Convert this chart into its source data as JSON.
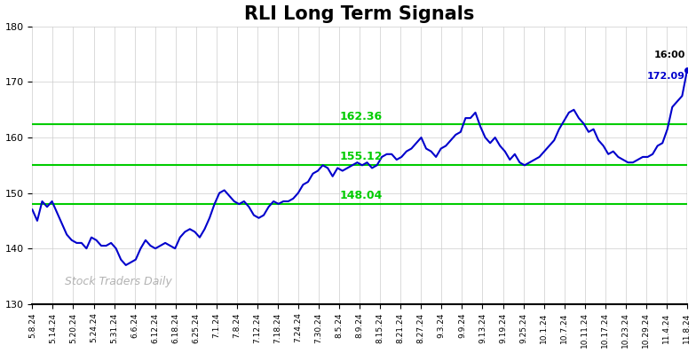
{
  "title": "RLI Long Term Signals",
  "title_fontsize": 15,
  "background_color": "#ffffff",
  "line_color": "#0000cc",
  "line_width": 1.5,
  "grid_color": "#cccccc",
  "watermark_text": "Stock Traders Daily",
  "watermark_color": "#aaaaaa",
  "hlines": [
    {
      "y": 148.04,
      "color": "#00cc00",
      "linewidth": 1.5,
      "label": "148.04"
    },
    {
      "y": 155.12,
      "color": "#00cc00",
      "linewidth": 1.5,
      "label": "155.12"
    },
    {
      "y": 162.36,
      "color": "#00cc00",
      "linewidth": 1.5,
      "label": "162.36"
    }
  ],
  "ylim": [
    130,
    180
  ],
  "yticks": [
    130,
    140,
    150,
    160,
    170,
    180
  ],
  "x_labels": [
    "5.8.24",
    "5.14.24",
    "5.20.24",
    "5.24.24",
    "5.31.24",
    "6.6.24",
    "6.12.24",
    "6.18.24",
    "6.25.24",
    "7.1.24",
    "7.8.24",
    "7.12.24",
    "7.18.24",
    "7.24.24",
    "7.30.24",
    "8.5.24",
    "8.9.24",
    "8.15.24",
    "8.21.24",
    "8.27.24",
    "9.3.24",
    "9.9.24",
    "9.13.24",
    "9.19.24",
    "9.25.24",
    "10.1.24",
    "10.7.24",
    "10.11.24",
    "10.17.24",
    "10.23.24",
    "10.29.24",
    "11.4.24",
    "11.8.24"
  ],
  "detailed_y": [
    147.0,
    145.0,
    148.5,
    147.5,
    148.5,
    146.5,
    144.5,
    142.5,
    141.5,
    141.0,
    141.0,
    140.0,
    142.0,
    141.5,
    140.5,
    140.5,
    141.0,
    140.0,
    138.0,
    137.0,
    137.5,
    138.0,
    140.0,
    141.5,
    140.5,
    140.0,
    140.5,
    141.0,
    140.5,
    140.0,
    142.0,
    143.0,
    143.5,
    143.0,
    142.0,
    143.5,
    145.5,
    148.0,
    150.0,
    150.5,
    149.5,
    148.5,
    148.0,
    148.5,
    147.5,
    146.0,
    145.5,
    146.0,
    147.5,
    148.5,
    148.04,
    148.5,
    148.5,
    149.0,
    150.0,
    151.5,
    152.0,
    153.5,
    154.0,
    155.0,
    154.5,
    153.0,
    154.5,
    154.0,
    154.5,
    155.0,
    155.5,
    155.0,
    155.5,
    154.5,
    155.0,
    156.5,
    157.0,
    157.0,
    156.0,
    156.5,
    157.5,
    158.0,
    159.0,
    160.0,
    158.0,
    157.5,
    156.5,
    158.0,
    158.5,
    159.5,
    160.5,
    161.0,
    163.5,
    163.5,
    164.5,
    162.0,
    160.0,
    159.0,
    160.0,
    158.5,
    157.5,
    156.0,
    157.0,
    155.5,
    155.0,
    155.5,
    156.0,
    156.5,
    157.5,
    158.5,
    159.5,
    161.5,
    163.0,
    164.5,
    165.0,
    163.5,
    162.5,
    161.0,
    161.5,
    159.5,
    158.5,
    157.0,
    157.5,
    156.5,
    156.0,
    155.5,
    155.5,
    156.0,
    156.5,
    156.5,
    157.0,
    158.5,
    159.0,
    161.5,
    165.5,
    166.5,
    167.5,
    172.09
  ]
}
